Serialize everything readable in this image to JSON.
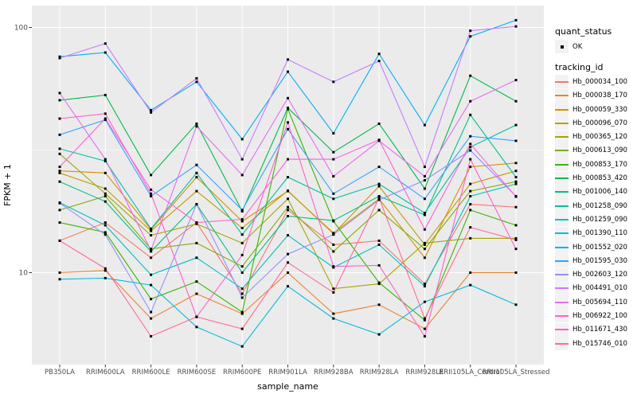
{
  "figure": {
    "background": "#FFFFFF",
    "panel_background": "#EBEBEB",
    "gridline_color": "#FFFFFF",
    "tick_color": "#333333",
    "tick_label_color": "#4D4D4D",
    "point_color": "#000000",
    "legend_key_background": "#F2F2F2"
  },
  "axes": {
    "x_title": "sample_name",
    "y_title": "FPKM + 1",
    "y_tick_labels": [
      "100",
      "10"
    ],
    "y_scale": "log10"
  },
  "legend": {
    "quant_status_title": "quant_status",
    "quant_status_item": "OK",
    "quant_status_glyph": "black-square-point",
    "tracking_id_title": "tracking_id"
  },
  "chart_data": {
    "type": "line",
    "title": "",
    "xlabel": "sample_name",
    "ylabel": "FPKM + 1",
    "y_scale": "log10",
    "y_major_breaks": [
      10,
      100
    ],
    "y_minor_breaks": [
      31.6
    ],
    "ylim_displayed": [
      3.8,
      125
    ],
    "grid": true,
    "legend_position": "right",
    "point_shape": "filled-black-square",
    "categories": [
      "PB350LA",
      "RRIM600LA",
      "RRIM600LE",
      "RRIM600SE",
      "RRIM600PE",
      "RRIM901LA",
      "RRIM928BA",
      "RRIM928LA",
      "RRIM928LE",
      "RRII105LA_Control",
      "RRII105LA_Stressed"
    ],
    "series": [
      {
        "name": "Hb_000034_100",
        "color": "#F8766D",
        "quant_status": "OK",
        "values": [
          13.5,
          16,
          11.5,
          16,
          8.2,
          18,
          13,
          13.5,
          9,
          19,
          18.5
        ]
      },
      {
        "name": "Hb_000038_170",
        "color": "#EA8331",
        "quant_status": "OK",
        "values": [
          10,
          10.2,
          6.5,
          8.2,
          6.8,
          10,
          6.8,
          7.4,
          5.9,
          10,
          10
        ]
      },
      {
        "name": "Hb_000059_330",
        "color": "#D89000",
        "quant_status": "OK",
        "values": [
          26,
          25.5,
          15,
          24.5,
          16.2,
          21.5,
          14.5,
          20,
          11.5,
          27,
          28
        ]
      },
      {
        "name": "Hb_000096_070",
        "color": "#C09B00",
        "quant_status": "OK",
        "values": [
          25.5,
          22,
          14.8,
          21.5,
          15.2,
          21.6,
          14.4,
          22.5,
          13,
          23,
          26
        ]
      },
      {
        "name": "Hb_000365_120",
        "color": "#A3A500",
        "quant_status": "OK",
        "values": [
          30.5,
          21,
          14.2,
          15.8,
          13.2,
          20,
          8.6,
          9,
          13.2,
          13.8,
          13.8
        ]
      },
      {
        "name": "Hb_000613_090",
        "color": "#7CAE00",
        "quant_status": "OK",
        "values": [
          18,
          20.5,
          12.5,
          13.2,
          10.6,
          18.5,
          12.2,
          18,
          12.5,
          21.5,
          23.5
        ]
      },
      {
        "name": "Hb_000853_170",
        "color": "#39B600",
        "quant_status": "OK",
        "values": [
          16,
          14.6,
          7.8,
          9.2,
          6.9,
          46.5,
          16.2,
          9.1,
          6.4,
          18,
          15.6
        ]
      },
      {
        "name": "Hb_000853_420",
        "color": "#00BB4E",
        "quant_status": "OK",
        "values": [
          50.5,
          53,
          25,
          40.5,
          17.8,
          47,
          31,
          40.5,
          22,
          63.5,
          50
        ]
      },
      {
        "name": "Hb_001006_140",
        "color": "#00C087",
        "quant_status": "OK",
        "values": [
          23.5,
          19.5,
          12.2,
          19,
          10,
          17,
          16.3,
          20.5,
          17.2,
          44,
          24.5
        ]
      },
      {
        "name": "Hb_001258_090",
        "color": "#00C1A3",
        "quant_status": "OK",
        "values": [
          32,
          28.5,
          15.1,
          25.5,
          14.3,
          24.5,
          20,
          23,
          17.5,
          32.5,
          40
        ]
      },
      {
        "name": "Hb_001259_090",
        "color": "#00BFC4",
        "quant_status": "OK",
        "values": [
          19.3,
          15.6,
          9.8,
          11.5,
          8.6,
          14.2,
          10.5,
          13,
          8.8,
          20.5,
          23
        ]
      },
      {
        "name": "Hb_001390_110",
        "color": "#00BAE0",
        "quant_status": "OK",
        "values": [
          9.4,
          9.5,
          8.9,
          6,
          5,
          8.8,
          6.5,
          5.6,
          7.6,
          8.9,
          7.4
        ]
      },
      {
        "name": "Hb_001552_020",
        "color": "#00B0F6",
        "quant_status": "OK",
        "values": [
          76,
          79,
          46,
          60,
          35,
          66,
          37,
          78,
          40,
          92,
          107
        ]
      },
      {
        "name": "Hb_001595_030",
        "color": "#35A2FF",
        "quant_status": "OK",
        "values": [
          36.5,
          42,
          20.5,
          27.5,
          18,
          38.5,
          21,
          27,
          20,
          36,
          34.5
        ]
      },
      {
        "name": "Hb_002603_120",
        "color": "#9590FF",
        "quant_status": "OK",
        "values": [
          19.2,
          14.3,
          6.9,
          19,
          7.9,
          11.9,
          14.3,
          19.8,
          23.8,
          31.5,
          20.5
        ]
      },
      {
        "name": "Hb_004491_010",
        "color": "#C77CFF",
        "quant_status": "OK",
        "values": [
          75,
          86,
          45,
          62,
          29,
          74,
          60,
          73,
          27,
          97,
          101
        ]
      },
      {
        "name": "Hb_005694_110",
        "color": "#E76BF3",
        "quant_status": "OK",
        "values": [
          54,
          29,
          12.3,
          39.5,
          25,
          51.5,
          24.7,
          34.5,
          24.7,
          50,
          61
        ]
      },
      {
        "name": "Hb_006922_100",
        "color": "#FA62DB",
        "quant_status": "OK",
        "values": [
          27,
          42.5,
          21.8,
          16,
          16.5,
          29,
          29,
          34.8,
          15,
          33.5,
          20.4
        ]
      },
      {
        "name": "Hb_011671_430",
        "color": "#FF61CC",
        "quant_status": "OK",
        "values": [
          42.5,
          44.5,
          21,
          6.6,
          11.8,
          41,
          10.6,
          10.7,
          5.5,
          29,
          12.5
        ]
      },
      {
        "name": "Hb_015746_010",
        "color": "#FF6A98",
        "quant_status": "OK",
        "values": [
          13.5,
          10.4,
          5.5,
          6.6,
          5.9,
          11,
          8.3,
          20.2,
          6.5,
          15.3,
          13.6
        ]
      }
    ]
  }
}
